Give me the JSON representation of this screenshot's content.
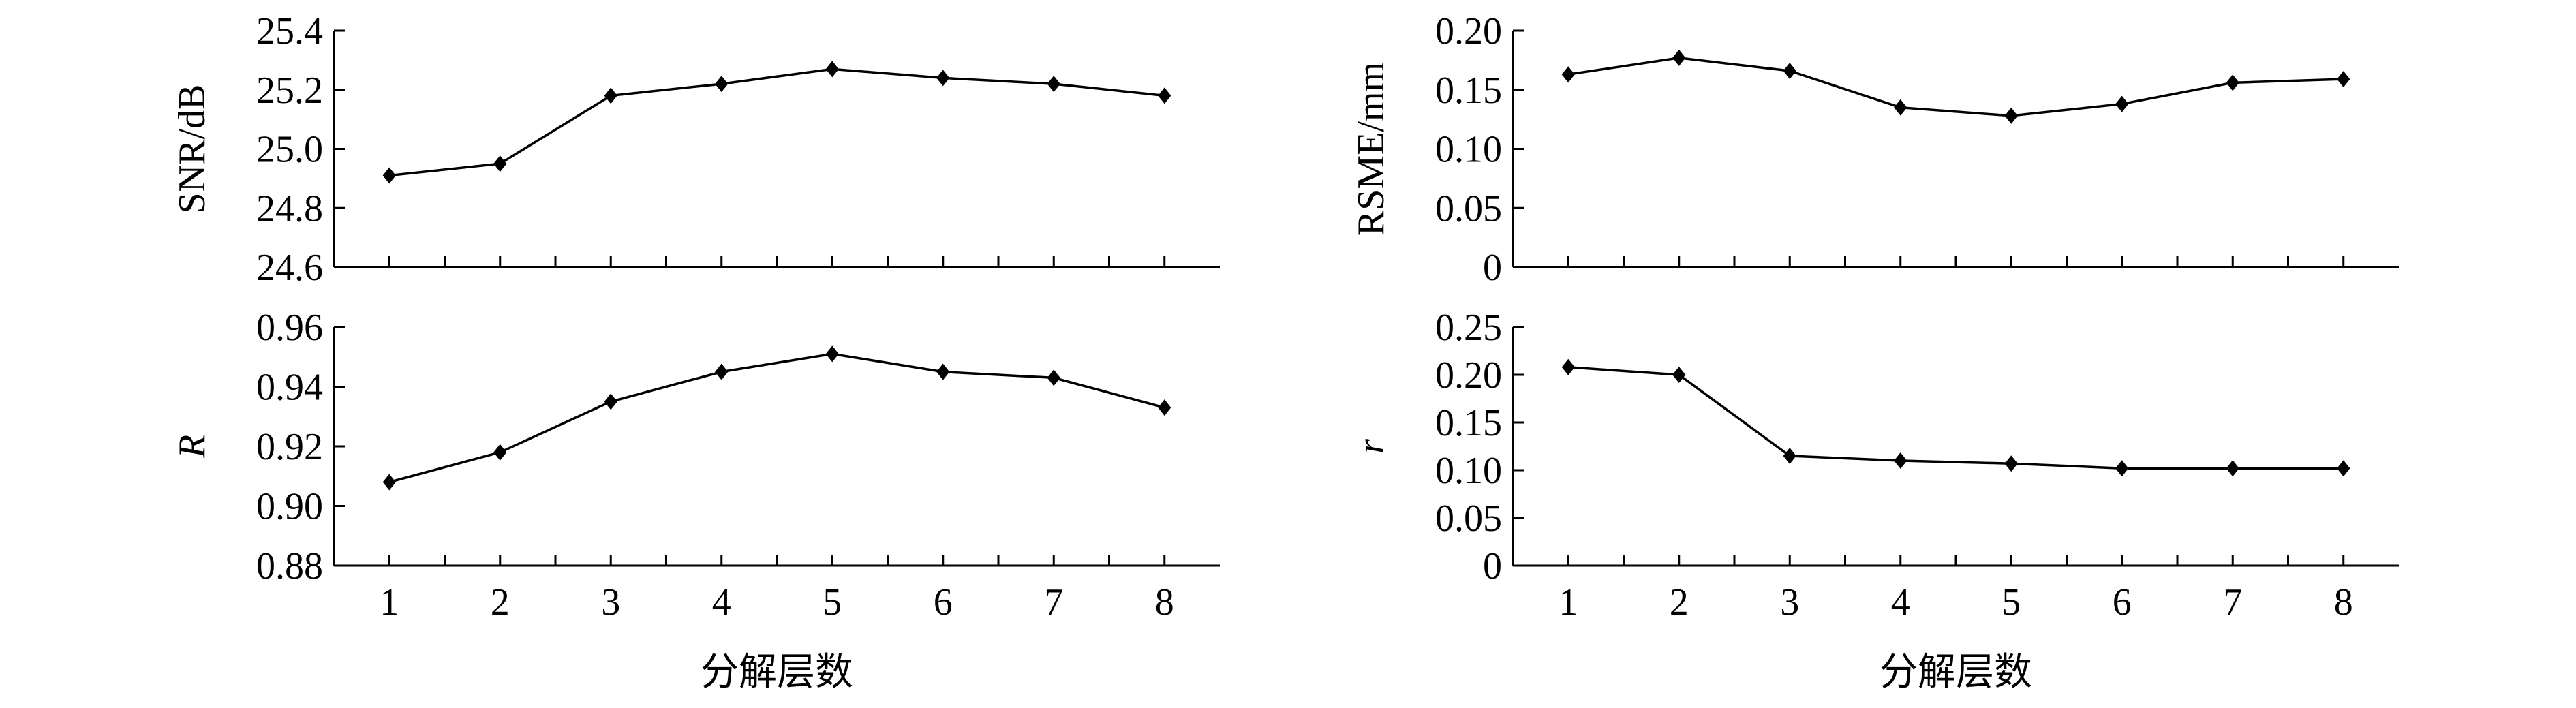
{
  "chart_data": [
    {
      "type": "line",
      "x": [
        1,
        2,
        3,
        4,
        5,
        6,
        7,
        8
      ],
      "values": [
        24.91,
        24.95,
        25.18,
        25.22,
        25.27,
        25.24,
        25.22,
        25.18
      ],
      "ylabel": "SNR/dB",
      "ylim": [
        24.6,
        25.4
      ],
      "yticks": [
        "24.6",
        "24.8",
        "25.0",
        "25.2",
        "25.4"
      ],
      "xlabel": ""
    },
    {
      "type": "line",
      "x": [
        1,
        2,
        3,
        4,
        5,
        6,
        7,
        8
      ],
      "values": [
        0.163,
        0.177,
        0.166,
        0.135,
        0.128,
        0.138,
        0.156,
        0.159
      ],
      "ylabel": "RSME/mm",
      "ylim": [
        0,
        0.2
      ],
      "yticks": [
        "0",
        "0.05",
        "0.10",
        "0.15",
        "0.20"
      ],
      "xlabel": ""
    },
    {
      "type": "line",
      "x": [
        1,
        2,
        3,
        4,
        5,
        6,
        7,
        8
      ],
      "values": [
        0.908,
        0.918,
        0.935,
        0.945,
        0.951,
        0.945,
        0.943,
        0.933
      ],
      "ylabel": "R",
      "ylim": [
        0.88,
        0.96
      ],
      "yticks": [
        "0.88",
        "0.90",
        "0.92",
        "0.94",
        "0.96"
      ],
      "xticks": [
        "1",
        "2",
        "3",
        "4",
        "5",
        "6",
        "7",
        "8"
      ],
      "xlabel": "分解层数"
    },
    {
      "type": "line",
      "x": [
        1,
        2,
        3,
        4,
        5,
        6,
        7,
        8
      ],
      "values": [
        0.208,
        0.2,
        0.115,
        0.11,
        0.107,
        0.102,
        0.102,
        0.102
      ],
      "ylabel": "r",
      "ylim": [
        0,
        0.25
      ],
      "yticks": [
        "0",
        "0.05",
        "0.10",
        "0.15",
        "0.20",
        "0.25"
      ],
      "xticks": [
        "1",
        "2",
        "3",
        "4",
        "5",
        "6",
        "7",
        "8"
      ],
      "xlabel": "分解层数"
    }
  ]
}
